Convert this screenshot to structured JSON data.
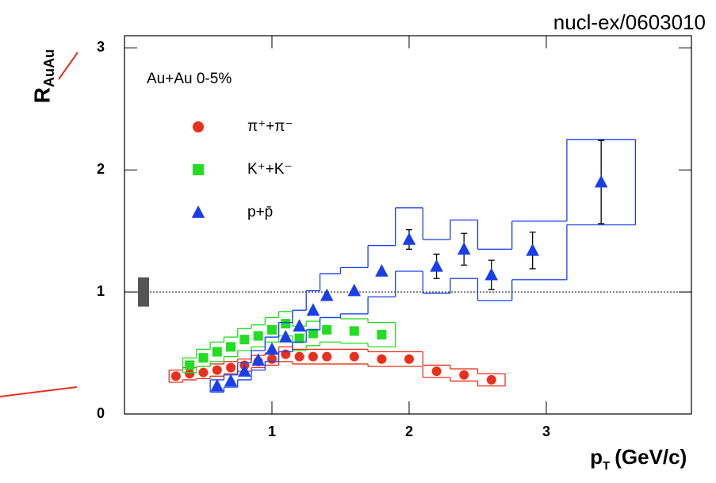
{
  "chart_data": {
    "type": "scatter",
    "annotation": "nucl-ex/0603010",
    "ylabel": {
      "main": "R",
      "sub": "AuAu"
    },
    "xlabel": {
      "main": "p",
      "sub": "T",
      "unit": " (GeV/c)"
    },
    "legend_title": "Au+Au 0-5%",
    "xlim": [
      -0.075,
      4.058
    ],
    "ylim": [
      0,
      3.1
    ],
    "xticks": [
      1,
      2,
      3
    ],
    "yticks": [
      0,
      1,
      2,
      3
    ],
    "reference_line": 1,
    "norm_uncertainty": 0.12,
    "series": [
      {
        "name": "π⁺+π⁻",
        "color": "#e8301c",
        "marker": "circle",
        "sys_color": "#e8301c",
        "x": [
          0.3,
          0.4,
          0.5,
          0.6,
          0.7,
          0.8,
          0.9,
          1.0,
          1.1,
          1.2,
          1.3,
          1.4,
          1.6,
          1.8,
          2.0,
          2.2,
          2.4,
          2.6
        ],
        "values": [
          0.31,
          0.33,
          0.34,
          0.36,
          0.38,
          0.4,
          0.43,
          0.45,
          0.49,
          0.47,
          0.47,
          0.47,
          0.47,
          0.45,
          0.45,
          0.35,
          0.32,
          0.28
        ],
        "sys": [
          0.05,
          0.05,
          0.05,
          0.05,
          0.05,
          0.05,
          0.05,
          0.05,
          0.06,
          0.06,
          0.06,
          0.06,
          0.06,
          0.06,
          0.06,
          0.05,
          0.05,
          0.05
        ]
      },
      {
        "name": "K⁺+K⁻",
        "color": "#22dd22",
        "marker": "square",
        "sys_color": "#22dd22",
        "x": [
          0.4,
          0.5,
          0.6,
          0.7,
          0.8,
          0.9,
          1.0,
          1.1,
          1.2,
          1.3,
          1.4,
          1.6,
          1.8
        ],
        "values": [
          0.4,
          0.46,
          0.51,
          0.55,
          0.61,
          0.64,
          0.69,
          0.74,
          0.62,
          0.66,
          0.69,
          0.68,
          0.65
        ],
        "sys": [
          0.06,
          0.07,
          0.08,
          0.08,
          0.09,
          0.09,
          0.1,
          0.1,
          0.1,
          0.1,
          0.1,
          0.1,
          0.1
        ]
      },
      {
        "name": "p+p̄",
        "color": "#1a3fe8",
        "marker": "triangle",
        "sys_color": "#1a3fe8",
        "x": [
          0.6,
          0.7,
          0.8,
          0.9,
          1.0,
          1.1,
          1.2,
          1.3,
          1.4,
          1.6,
          1.8,
          2.0,
          2.2,
          2.4,
          2.6,
          2.9,
          3.4
        ],
        "values": [
          0.23,
          0.27,
          0.35,
          0.44,
          0.53,
          0.63,
          0.72,
          0.85,
          0.97,
          1.01,
          1.17,
          1.43,
          1.21,
          1.35,
          1.14,
          1.34,
          1.9
        ],
        "errors": [
          null,
          null,
          null,
          null,
          null,
          null,
          null,
          null,
          null,
          null,
          null,
          0.08,
          0.1,
          0.13,
          0.12,
          0.15,
          0.34
        ],
        "sys": [
          0.05,
          0.05,
          0.07,
          0.08,
          0.1,
          0.12,
          0.13,
          0.16,
          0.18,
          0.19,
          0.21,
          0.26,
          0.22,
          0.24,
          0.21,
          0.24,
          0.35
        ]
      }
    ]
  }
}
